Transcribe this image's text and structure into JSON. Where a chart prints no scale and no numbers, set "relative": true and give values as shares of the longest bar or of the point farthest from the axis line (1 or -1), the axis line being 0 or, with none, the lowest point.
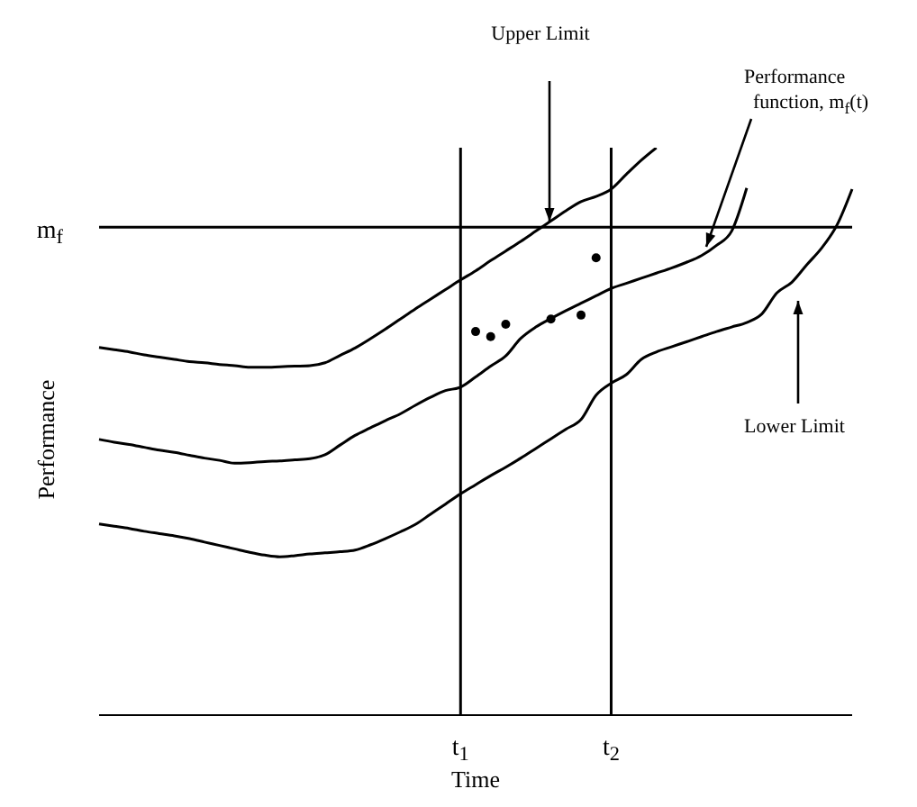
{
  "chart_data": {
    "type": "line",
    "relative": true,
    "xlabel": "Time",
    "ylabel": "Performance",
    "line_style": "solid",
    "categories": [
      null,
      null,
      null,
      null,
      null,
      null,
      null,
      null,
      null,
      null,
      null,
      null,
      null,
      null,
      null,
      null,
      null,
      null,
      null,
      null,
      null,
      null,
      null,
      null,
      "t$_{1}$",
      null,
      null,
      null,
      null,
      null,
      null,
      null,
      null,
      null,
      "t$_{2}$",
      null,
      null,
      null,
      null,
      null,
      null,
      null,
      null,
      null,
      null,
      null,
      null,
      null,
      null,
      null,
      null
    ],
    "series": [
      {
        "color": "#000000",
        "values": [
          0.648,
          0.644,
          0.64,
          0.635,
          0.631,
          0.627,
          0.623,
          0.621,
          0.618,
          0.616,
          0.613,
          0.613,
          0.614,
          0.615,
          0.616,
          0.621,
          0.634,
          0.647,
          0.663,
          0.68,
          0.698,
          0.716,
          0.733,
          0.75,
          0.767,
          0.783,
          0.801,
          0.818,
          0.835,
          0.853,
          0.871,
          0.889,
          0.905,
          0.914,
          0.927,
          0.953,
          0.978,
          1.0,
          null,
          null,
          null,
          null,
          null,
          null,
          null,
          null,
          null,
          null,
          null,
          null,
          null
        ]
      },
      {
        "color": "#000000",
        "values": [
          0.486,
          0.481,
          0.477,
          0.472,
          0.467,
          0.463,
          0.458,
          0.453,
          0.449,
          0.444,
          0.445,
          0.447,
          0.448,
          0.45,
          0.452,
          0.459,
          0.476,
          0.493,
          0.506,
          0.519,
          0.531,
          0.546,
          0.56,
          0.572,
          0.578,
          0.596,
          0.615,
          0.633,
          0.664,
          0.684,
          0.699,
          0.713,
          0.726,
          0.739,
          0.752,
          0.761,
          0.77,
          0.779,
          0.788,
          0.798,
          0.81,
          0.828,
          0.853,
          0.929,
          null,
          null,
          null,
          null,
          null,
          null,
          null
        ]
      },
      {
        "color": "#000000",
        "values": [
          0.337,
          0.333,
          0.329,
          0.324,
          0.32,
          0.316,
          0.311,
          0.305,
          0.299,
          0.293,
          0.287,
          0.282,
          0.279,
          0.281,
          0.284,
          0.286,
          0.288,
          0.291,
          0.3,
          0.311,
          0.323,
          0.336,
          0.354,
          0.372,
          0.39,
          0.406,
          0.422,
          0.437,
          0.453,
          0.47,
          0.487,
          0.504,
          0.521,
          0.564,
          0.585,
          0.6,
          0.627,
          0.64,
          0.649,
          0.658,
          0.667,
          0.676,
          0.684,
          0.692,
          0.707,
          0.744,
          0.763,
          0.794,
          0.824,
          0.864,
          0.927
        ]
      },
      {
        "type": "scatter",
        "marker": "circle",
        "color": "#000000",
        "values": [
          null,
          null,
          null,
          null,
          null,
          null,
          null,
          null,
          null,
          null,
          null,
          null,
          null,
          null,
          null,
          null,
          null,
          null,
          null,
          null,
          null,
          null,
          null,
          null,
          null,
          0.676,
          0.667,
          0.689,
          null,
          null,
          0.698,
          null,
          0.705,
          0.806,
          null,
          null,
          null,
          null,
          null,
          null,
          null,
          null,
          null,
          null,
          null,
          null,
          null,
          null,
          null,
          null,
          null
        ]
      }
    ],
    "ref_lines": [
      {
        "axis": "y",
        "value": 0.86,
        "label": "m$_{f}$"
      },
      {
        "axis": "x",
        "value": "t$_{1}$"
      },
      {
        "axis": "x",
        "value": "t$_{2}$"
      }
    ],
    "annotations": [
      "Upper Limit",
      "Performance function, m$_{f}$(t)",
      "Lower Limit"
    ]
  }
}
